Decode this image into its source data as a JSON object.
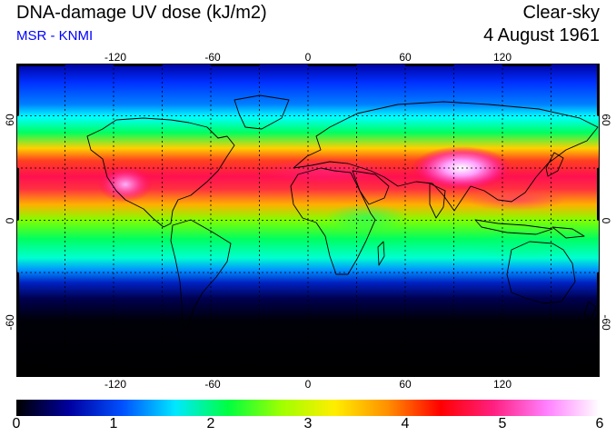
{
  "header": {
    "title": "DNA-damage UV dose (kJ/m2)",
    "subtitle": "MSR - KNMI",
    "condition": "Clear-sky",
    "date": "4 August 1961"
  },
  "map": {
    "projection": "equirectangular",
    "lon_range": [
      -180,
      180
    ],
    "lat_range": [
      -90,
      90
    ],
    "lon_ticks": [
      "-120",
      "-60",
      "0",
      "60",
      "120"
    ],
    "lat_ticks": [
      "60",
      "0",
      "-60"
    ],
    "grid": "dashed 30-degree graticule",
    "background": "#000000"
  },
  "colorbar": {
    "ticks": [
      "0",
      "1",
      "2",
      "3",
      "4",
      "5",
      "6"
    ],
    "range": [
      0,
      6
    ],
    "colors": [
      "#000000",
      "#0000a0",
      "#0050ff",
      "#00e8ff",
      "#00ff40",
      "#a0ff00",
      "#ffee00",
      "#ff9000",
      "#ff0000",
      "#ff2080",
      "#ff80ff",
      "#ffffff"
    ]
  }
}
